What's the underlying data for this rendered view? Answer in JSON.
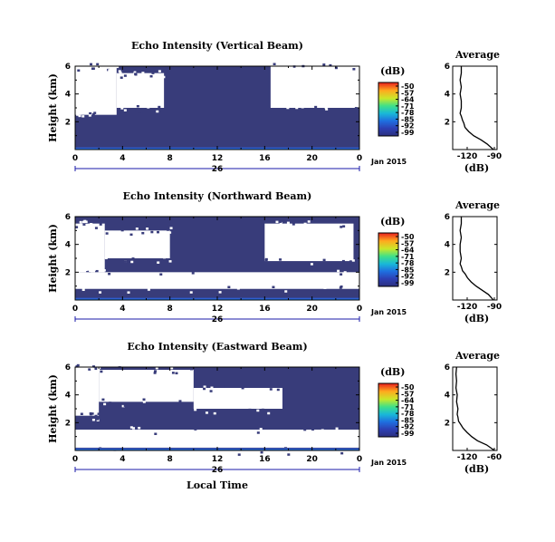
{
  "chart_data": [
    {
      "type": "heatmap",
      "title": "Echo Intensity (Vertical Beam)",
      "ylabel": "Height (km)",
      "xticks": [
        "0",
        "4",
        "8",
        "12",
        "16",
        "20",
        "0"
      ],
      "yticks": [
        "6",
        "4",
        "2"
      ],
      "xlim": [
        0,
        24
      ],
      "ylim": [
        0,
        6
      ],
      "date_mark": "26",
      "date_label": "Jan 2015",
      "colorbar": {
        "unit": "(dB)",
        "ticks": [
          "-50",
          "-57",
          "-64",
          "-71",
          "-78",
          "-85",
          "-92",
          "-99"
        ]
      },
      "regions": [
        {
          "x": [
            0,
            3.5
          ],
          "y": [
            2.5,
            6
          ],
          "value": "no data"
        },
        {
          "x": [
            3.5,
            7.5
          ],
          "y": [
            3.0,
            5.5
          ],
          "value": "no data"
        },
        {
          "x": [
            16.5,
            24
          ],
          "y": [
            3.0,
            6
          ],
          "value": "no data"
        },
        {
          "x": [
            0,
            24
          ],
          "y": [
            0,
            2.3
          ],
          "value": "-92 to -99"
        },
        {
          "x": [
            0,
            24
          ],
          "y": [
            0,
            0.2
          ],
          "value": "-85"
        }
      ],
      "profile": {
        "title": "Average",
        "xlabel": "(dB)",
        "xticks": [
          "-120",
          "-90"
        ],
        "yticks": [
          "6",
          "4",
          "2"
        ],
        "xlim": [
          -123,
          -87
        ],
        "ylim": [
          0,
          6
        ],
        "x": [
          -116,
          -116,
          -117,
          -116,
          -117,
          -116,
          -116,
          -117,
          -116,
          -115,
          -114,
          -113,
          -110,
          -106,
          -100,
          -95,
          -90
        ],
        "y": [
          6.0,
          5.5,
          5.0,
          4.5,
          4.0,
          3.5,
          3.0,
          2.6,
          2.4,
          2.1,
          1.9,
          1.6,
          1.3,
          1.0,
          0.7,
          0.4,
          0.0
        ]
      }
    },
    {
      "type": "heatmap",
      "title": "Echo Intensity (Northward Beam)",
      "ylabel": "Height (km)",
      "xticks": [
        "0",
        "4",
        "8",
        "12",
        "16",
        "20",
        "0"
      ],
      "yticks": [
        "6",
        "4",
        "2"
      ],
      "xlim": [
        0,
        24
      ],
      "ylim": [
        0,
        6
      ],
      "date_mark": "26",
      "date_label": "Jan 2015",
      "colorbar": {
        "unit": "(dB)",
        "ticks": [
          "-50",
          "-57",
          "-64",
          "-71",
          "-78",
          "-85",
          "-92",
          "-99"
        ]
      },
      "regions": [
        {
          "x": [
            0,
            2.5
          ],
          "y": [
            2.0,
            5.5
          ],
          "value": "no data"
        },
        {
          "x": [
            2.5,
            8.0
          ],
          "y": [
            3.0,
            5.0
          ],
          "value": "no data"
        },
        {
          "x": [
            16.0,
            23.5
          ],
          "y": [
            2.8,
            5.5
          ],
          "value": "no data"
        },
        {
          "x": [
            0,
            24
          ],
          "y": [
            0.8,
            2.0
          ],
          "value": "no data"
        },
        {
          "x": [
            0,
            24
          ],
          "y": [
            0,
            0.2
          ],
          "value": "-85"
        }
      ],
      "profile": {
        "title": "Average",
        "xlabel": "(dB)",
        "xticks": [
          "-120",
          "-90"
        ],
        "yticks": [
          "6",
          "4",
          "2"
        ],
        "xlim": [
          -123,
          -87
        ],
        "ylim": [
          0,
          6
        ],
        "x": [
          -116,
          -116,
          -117,
          -116,
          -117,
          -117,
          -116,
          -117,
          -116,
          -115,
          -113,
          -111,
          -108,
          -104,
          -99,
          -94,
          -90
        ],
        "y": [
          6.0,
          5.5,
          5.0,
          4.5,
          4.0,
          3.5,
          3.0,
          2.6,
          2.4,
          2.1,
          1.9,
          1.6,
          1.3,
          1.0,
          0.7,
          0.4,
          0.0
        ]
      }
    },
    {
      "type": "heatmap",
      "title": "Echo Intensity (Eastward Beam)",
      "ylabel": "Height (km)",
      "xlabel": "Local Time",
      "xticks": [
        "0",
        "4",
        "8",
        "12",
        "16",
        "20",
        "0"
      ],
      "yticks": [
        "6",
        "4",
        "2"
      ],
      "xlim": [
        0,
        24
      ],
      "ylim": [
        0,
        6
      ],
      "date_mark": "26",
      "date_label": "Jan 2015",
      "colorbar": {
        "unit": "(dB)",
        "ticks": [
          "-50",
          "-57",
          "-64",
          "-71",
          "-78",
          "-85",
          "-92",
          "-99"
        ]
      },
      "regions": [
        {
          "x": [
            0,
            2.0
          ],
          "y": [
            2.5,
            6
          ],
          "value": "no data"
        },
        {
          "x": [
            2.0,
            10.0
          ],
          "y": [
            3.5,
            5.8
          ],
          "value": "no data"
        },
        {
          "x": [
            10.0,
            17.5
          ],
          "y": [
            3.0,
            4.5
          ],
          "value": "no data"
        },
        {
          "x": [
            0,
            24
          ],
          "y": [
            0,
            1.5
          ],
          "value": "no data"
        },
        {
          "x": [
            0,
            24
          ],
          "y": [
            0,
            0.2
          ],
          "value": "-85"
        }
      ],
      "profile": {
        "title": "Average",
        "xlabel": "(dB)",
        "xticks": [
          "-120",
          "-60"
        ],
        "yticks": [
          "6",
          "4",
          "2"
        ],
        "xlim": [
          -124,
          -56
        ],
        "ylim": [
          0,
          6
        ],
        "x": [
          -118,
          -119,
          -118,
          -119,
          -117,
          -118,
          -116,
          -117,
          -116,
          -115,
          -112,
          -108,
          -102,
          -95,
          -86,
          -72,
          -60
        ],
        "y": [
          6.0,
          5.5,
          5.0,
          4.5,
          4.0,
          3.5,
          3.0,
          2.6,
          2.4,
          2.1,
          1.9,
          1.6,
          1.3,
          1.0,
          0.7,
          0.4,
          0.0
        ]
      }
    }
  ]
}
